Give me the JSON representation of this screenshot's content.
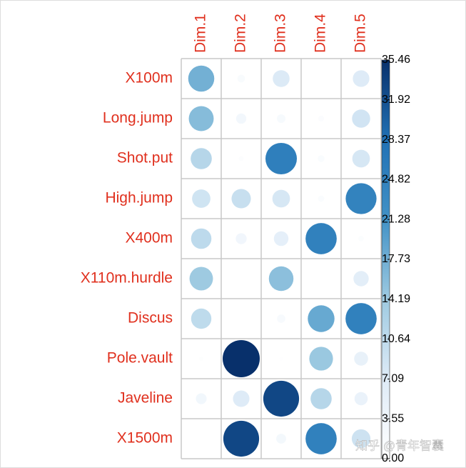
{
  "chart_data": {
    "type": "corrplot",
    "categories": [
      "X100m",
      "Long.jump",
      "Shot.put",
      "High.jump",
      "X400m",
      "X110m.hurdle",
      "Discus",
      "Pole.vault",
      "Javeline",
      "X1500m"
    ],
    "columns": [
      "Dim.1",
      "Dim.2",
      "Dim.3",
      "Dim.4",
      "Dim.5"
    ],
    "values": [
      [
        17.5,
        1.5,
        7.3,
        0.1,
        7.1
      ],
      [
        16.0,
        2.7,
        1.9,
        0.9,
        8.5
      ],
      [
        11.5,
        0.6,
        25.4,
        1.2,
        8.0
      ],
      [
        8.7,
        9.6,
        8.0,
        1.0,
        24.5
      ],
      [
        10.7,
        3.1,
        5.5,
        25.0,
        0.8
      ],
      [
        14.2,
        0.0,
        15.6,
        0.0,
        6.0
      ],
      [
        10.6,
        0.0,
        1.8,
        18.4,
        25.0
      ],
      [
        0.5,
        35.46,
        0.3,
        14.5,
        5.0
      ],
      [
        3.0,
        7.0,
        33.0,
        11.5,
        4.5
      ],
      [
        0.0,
        33.0,
        2.5,
        25.0,
        9.0
      ]
    ],
    "label_color": "#e0301e",
    "colorbar": {
      "lim": [
        0,
        35.46
      ],
      "ticks": [
        {
          "value": 0,
          "label": "0.00"
        },
        3.55,
        7.09,
        10.64,
        14.19,
        17.73,
        21.28,
        24.82,
        28.37,
        31.92,
        35.46
      ],
      "colors": [
        "#ffffff",
        "#deebf7",
        "#9ecae1",
        "#4292c6",
        "#2171b5",
        "#08306b"
      ]
    },
    "watermark": "知乎 @青年智囊"
  }
}
